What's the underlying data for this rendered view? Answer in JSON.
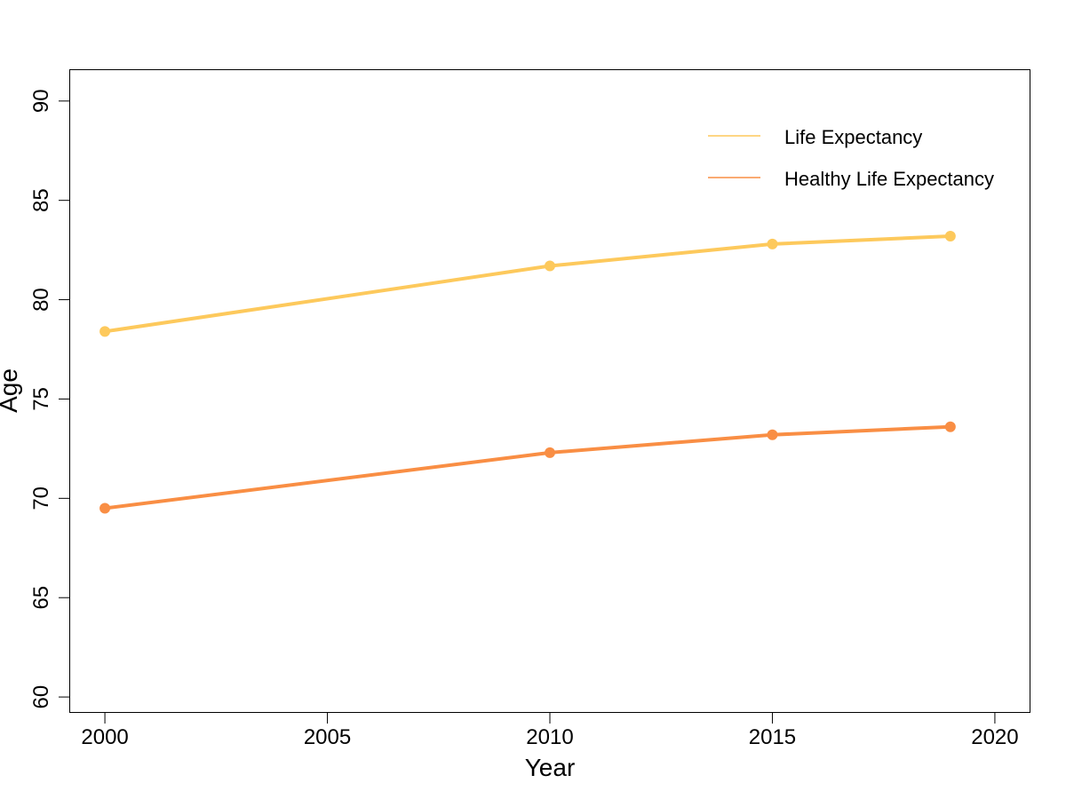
{
  "chart_data": {
    "type": "line",
    "title": "",
    "xlabel": "Year",
    "ylabel": "Age",
    "xlim": [
      1999.2,
      2020.8
    ],
    "ylim": [
      59.2,
      91.6
    ],
    "xticks": [
      2000,
      2005,
      2010,
      2015,
      2020
    ],
    "yticks": [
      60,
      65,
      70,
      75,
      80,
      85,
      90
    ],
    "grid": false,
    "legend": {
      "position": "top-right",
      "frame": false
    },
    "x": [
      2000,
      2010,
      2015,
      2019
    ],
    "series": [
      {
        "name": "Life Expectancy",
        "color": "#FDC95C",
        "values": [
          78.4,
          81.7,
          82.8,
          83.2
        ]
      },
      {
        "name": "Healthy Life Expectancy",
        "color": "#F98E44",
        "values": [
          69.5,
          72.3,
          73.2,
          73.6
        ]
      }
    ]
  }
}
